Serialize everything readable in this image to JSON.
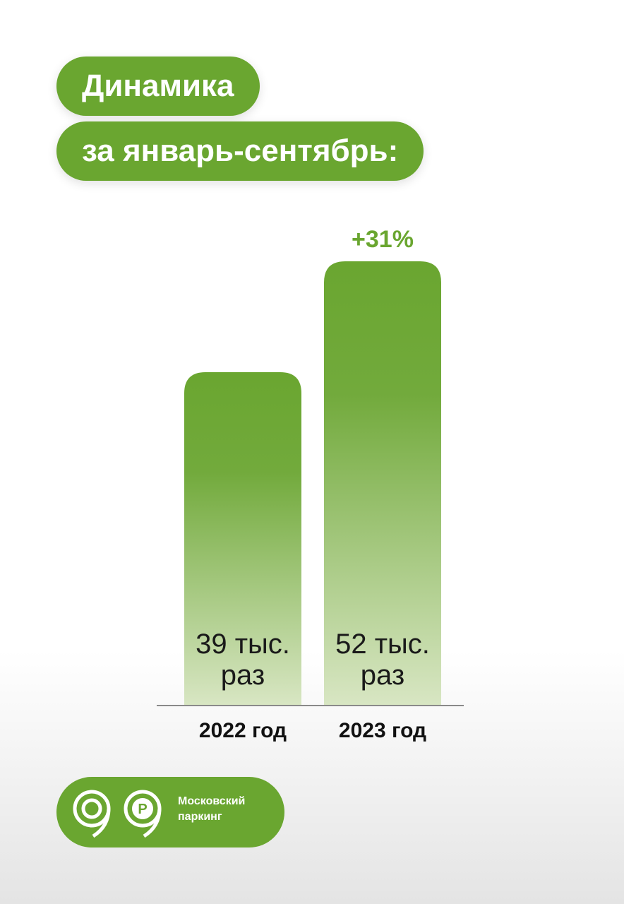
{
  "chart_data": {
    "type": "bar",
    "title": [
      "Динамика",
      "за январь-сентябрь:"
    ],
    "categories": [
      "2022 год",
      "2023 год"
    ],
    "values": [
      39,
      52
    ],
    "value_labels": [
      "39 тыс. раз",
      "52 тыс. раз"
    ],
    "color": "#6aa630",
    "annotation": "+31%"
  },
  "logo": {
    "text": "Московский паркинг"
  }
}
